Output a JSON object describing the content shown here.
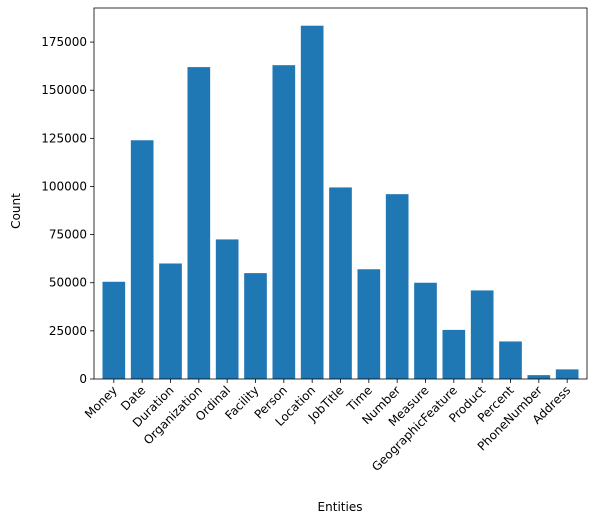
{
  "chart_data": {
    "type": "bar",
    "title": "",
    "xlabel": "Entities",
    "ylabel": "Count",
    "categories": [
      "Money",
      "Date",
      "Duration",
      "Organization",
      "Ordinal",
      "Facility",
      "Person",
      "Location",
      "JobTitle",
      "Time",
      "Number",
      "Measure",
      "GeographicFeature",
      "Product",
      "Percent",
      "PhoneNumber",
      "Address"
    ],
    "values": [
      50500,
      124000,
      60000,
      162000,
      72500,
      55000,
      163000,
      183500,
      99500,
      57000,
      96000,
      50000,
      25500,
      46000,
      19500,
      2000,
      5000
    ],
    "yticks": [
      0,
      25000,
      50000,
      75000,
      100000,
      125000,
      150000,
      175000
    ],
    "ylim": [
      0,
      192700
    ],
    "grid": false,
    "legend": "none",
    "bar_color": "#1f77b4"
  }
}
